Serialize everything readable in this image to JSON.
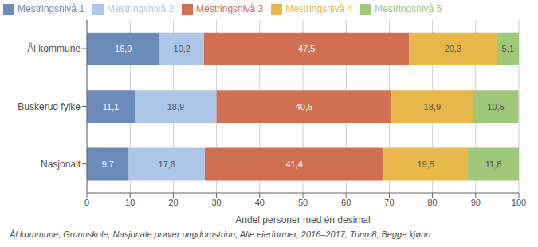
{
  "chart_data": {
    "type": "bar",
    "orientation": "horizontal",
    "stacked": true,
    "data_labels": true,
    "grid": true,
    "legend": "top",
    "categories": [
      "Ål kommune",
      "Buskerud fylke",
      "Nasjonalt"
    ],
    "series": [
      {
        "name": "Mestringsnivå 1",
        "color": "#6b8cba",
        "values": [
          16.9,
          11.1,
          9.7
        ],
        "value_labels": [
          "16,9",
          "11,1",
          "9,7"
        ]
      },
      {
        "name": "Mestringsnivå 2",
        "color": "#aec6e8",
        "values": [
          10.2,
          18.9,
          17.6
        ],
        "value_labels": [
          "10,2",
          "18,9",
          "17,6"
        ]
      },
      {
        "name": "Mestringsnivå 3",
        "color": "#d07050",
        "values": [
          47.5,
          40.5,
          41.4
        ],
        "value_labels": [
          "47,5",
          "40,5",
          "41,4"
        ]
      },
      {
        "name": "Mestringsnivå 4",
        "color": "#e8b84b",
        "values": [
          20.3,
          18.9,
          19.5
        ],
        "value_labels": [
          "20,3",
          "18,9",
          "19,5"
        ]
      },
      {
        "name": "Mestringsnivå 5",
        "color": "#9fc87a",
        "values": [
          5.1,
          10.5,
          11.8
        ],
        "value_labels": [
          "5,1",
          "10,5",
          "11,8"
        ]
      }
    ],
    "xlabel": "Andel personer med én desimal",
    "xlim": [
      0,
      100
    ],
    "xticks": [
      0,
      10,
      20,
      30,
      40,
      50,
      60,
      70,
      80,
      90,
      100
    ],
    "annotations": [
      "Ål kommune, Grunnskole, Nasjonale prøver ungdomstrinn, Alle eierformer, 2016–2017, Trinn 8, Begge kjønn"
    ]
  }
}
